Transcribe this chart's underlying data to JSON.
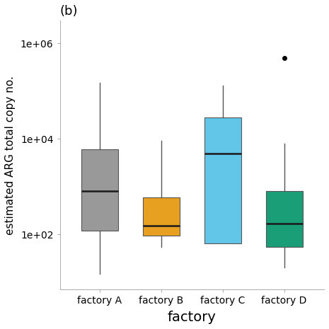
{
  "title": "(b)",
  "xlabel": "factory",
  "ylabel": "estimated ARG total copy no.",
  "categories": [
    "factory A",
    "factory B",
    "factory C",
    "factory D"
  ],
  "colors": [
    "#999999",
    "#E8A020",
    "#62C6E8",
    "#1A9E78"
  ],
  "box_data": {
    "factory A": {
      "whislo": 15,
      "q1": 120,
      "med": 800,
      "q3": 6000,
      "whishi": 150000,
      "fliers": []
    },
    "factory B": {
      "whislo": 55,
      "q1": 95,
      "med": 150,
      "q3": 600,
      "whishi": 9000,
      "fliers": []
    },
    "factory C": {
      "whislo": 65,
      "q1": 65,
      "med": 5000,
      "q3": 28000,
      "whishi": 130000,
      "fliers": []
    },
    "factory D": {
      "whislo": 20,
      "q1": 55,
      "med": 170,
      "q3": 800,
      "whishi": 8000,
      "fliers": [
        500000
      ]
    }
  },
  "ylim_log": [
    7,
    3000000
  ],
  "yticks": [
    100,
    10000,
    1000000
  ],
  "ytick_labels": [
    "1e+02",
    "1e+04",
    "1e+06"
  ],
  "background_color": "#ffffff",
  "linecolor": "#555555",
  "mediancolor": "#1a1a1a",
  "xlabel_fontsize": 14,
  "ylabel_fontsize": 11,
  "tick_fontsize": 10,
  "title_fontsize": 13
}
